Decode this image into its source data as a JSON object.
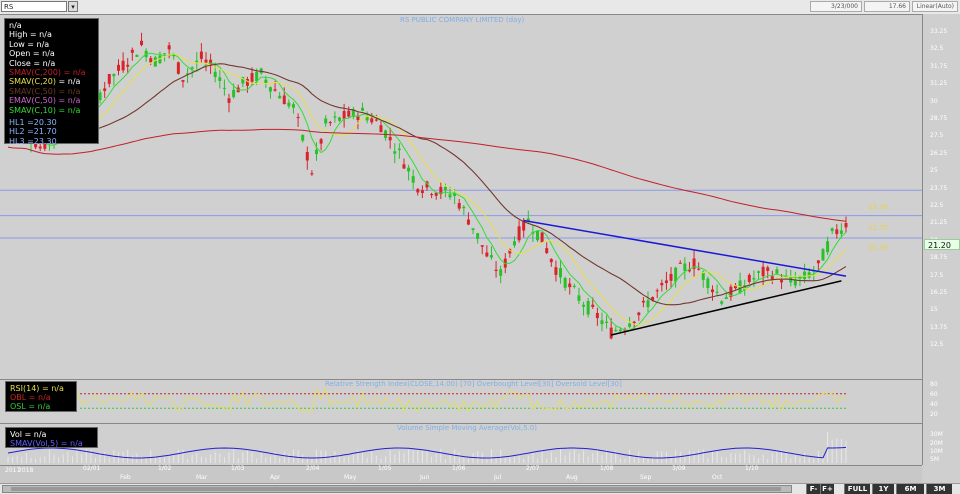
{
  "toolbar": {
    "symbol": "RS",
    "dropdown": "▾",
    "date": "3/23/000",
    "price": "17.66",
    "scale": "Linear(Auto)"
  },
  "chart_title": "RS PUBLIC COMPANY LIMITED (day)",
  "info": {
    "lines": [
      "n/a",
      "High  = n/a",
      "Low  = n/a",
      "Open  = n/a",
      "Close  = n/a"
    ],
    "mas": [
      {
        "label": "SMAV(C,200)",
        "value": "= n/a",
        "color": "#c0202a"
      },
      {
        "label": "SMAV(C,20)",
        "value": "= n/a",
        "color": "#e6e04a"
      },
      {
        "label": "SMAV(C,50)",
        "value": "= n/a",
        "color": "#6b3a22"
      },
      {
        "label": "EMAV(C,50)",
        "value": "= n/a",
        "color": "#cc66cc"
      },
      {
        "label": "SMAV(C,10)",
        "value": "= n/a",
        "color": "#33dd33"
      }
    ],
    "hls": [
      "HL1 =20.30",
      "HL2 =21.70",
      "HL3 =23.30"
    ]
  },
  "hlines": [
    {
      "label": "23.30"
    },
    {
      "label": "21.70"
    },
    {
      "label": "20.30"
    }
  ],
  "last_price": "21.20",
  "price_ticks": [
    "33.25",
    "32.5",
    "31.75",
    "31.25",
    "30",
    "28.75",
    "27.5",
    "26.25",
    "25",
    "23.75",
    "22.5",
    "21.25",
    "20",
    "18.75",
    "17.5",
    "16.25",
    "15",
    "13.75",
    "12.5"
  ],
  "rsi": {
    "title": "Relative Strength Index(CLOSE,14.00) [70] Overbought Level[30] Oversold Level[30]",
    "labels": [
      {
        "text": "RSI(14)  = n/a",
        "color": "#e6e04a"
      },
      {
        "text": "OBL  = n/a",
        "color": "#cc2222"
      },
      {
        "text": "OSL  = n/a",
        "color": "#33cc33"
      }
    ],
    "ticks": [
      "80",
      "60",
      "40",
      "20"
    ]
  },
  "vol": {
    "title": "Volume Simple Moving Average(Vol,5.0)",
    "labels": [
      {
        "text": "Vol  = n/a",
        "color": "#ffffff"
      },
      {
        "text": "SMAV(Vol,5)  = n/a",
        "color": "#6060ff"
      }
    ],
    "ticks": [
      "30M",
      "20M",
      "10M",
      "5M"
    ]
  },
  "xaxis": {
    "years": [
      "2017",
      "2018"
    ],
    "months": [
      "",
      "Feb",
      "Mar",
      "Apr",
      "May",
      "Jun",
      "Jul",
      "Aug",
      "Sep",
      "Oct"
    ],
    "dates": [
      "02/01",
      "1/02",
      "1/03",
      "2/04",
      "1/05",
      "1/06",
      "2/07",
      "1/08",
      "3/09",
      "1/10"
    ]
  },
  "nav": {
    "prev": "F-",
    "next": "F+",
    "full": "FULL",
    "y1": "1Y",
    "m6": "6M",
    "m3": "3M"
  },
  "chart_data": {
    "type": "candlestick",
    "title": "RS PUBLIC COMPANY LIMITED (day)",
    "xlabel": "",
    "ylabel": "",
    "ylim": [
      12.5,
      33.25
    ],
    "indicators": [
      "SMAV(C,200)",
      "SMAV(C,20)",
      "SMAV(C,50)",
      "EMAV(C,50)",
      "SMAV(C,10)"
    ],
    "horizontal_lines": [
      23.3,
      21.7,
      20.3
    ],
    "close_series": [
      {
        "t": 0,
        "close": 27.5
      },
      {
        "t": 8,
        "close": 27.0
      },
      {
        "t": 14,
        "close": 26.0
      },
      {
        "t": 20,
        "close": 26.6
      },
      {
        "t": 28,
        "close": 27.2
      },
      {
        "t": 36,
        "close": 28.6
      },
      {
        "t": 44,
        "close": 30.2
      },
      {
        "t": 52,
        "close": 31.5
      },
      {
        "t": 58,
        "close": 32.4
      },
      {
        "t": 64,
        "close": 31.4
      },
      {
        "t": 70,
        "close": 32.2
      },
      {
        "t": 76,
        "close": 30.4
      },
      {
        "t": 84,
        "close": 31.6
      },
      {
        "t": 90,
        "close": 30.8
      },
      {
        "t": 96,
        "close": 29.2
      },
      {
        "t": 102,
        "close": 30.0
      },
      {
        "t": 110,
        "close": 30.6
      },
      {
        "t": 116,
        "close": 29.6
      },
      {
        "t": 124,
        "close": 28.5
      },
      {
        "t": 132,
        "close": 24.5
      },
      {
        "t": 138,
        "close": 27.4
      },
      {
        "t": 146,
        "close": 27.9
      },
      {
        "t": 154,
        "close": 28.2
      },
      {
        "t": 162,
        "close": 27.4
      },
      {
        "t": 170,
        "close": 25.6
      },
      {
        "t": 178,
        "close": 23.6
      },
      {
        "t": 186,
        "close": 23.3
      },
      {
        "t": 194,
        "close": 23.0
      },
      {
        "t": 202,
        "close": 21.0
      },
      {
        "t": 208,
        "close": 19.2
      },
      {
        "t": 214,
        "close": 18.0
      },
      {
        "t": 220,
        "close": 20.2
      },
      {
        "t": 226,
        "close": 21.4
      },
      {
        "t": 232,
        "close": 20.2
      },
      {
        "t": 238,
        "close": 18.4
      },
      {
        "t": 244,
        "close": 17.2
      },
      {
        "t": 250,
        "close": 16.2
      },
      {
        "t": 256,
        "close": 15.4
      },
      {
        "t": 262,
        "close": 14.4
      },
      {
        "t": 268,
        "close": 14.8
      },
      {
        "t": 274,
        "close": 15.6
      },
      {
        "t": 280,
        "close": 16.6
      },
      {
        "t": 286,
        "close": 17.4
      },
      {
        "t": 292,
        "close": 18.3
      },
      {
        "t": 298,
        "close": 18.7
      },
      {
        "t": 304,
        "close": 17.6
      },
      {
        "t": 310,
        "close": 16.5
      },
      {
        "t": 316,
        "close": 17.0
      },
      {
        "t": 322,
        "close": 17.6
      },
      {
        "t": 328,
        "close": 18.1
      },
      {
        "t": 334,
        "close": 18.0
      },
      {
        "t": 340,
        "close": 17.5
      },
      {
        "t": 346,
        "close": 17.8
      },
      {
        "t": 352,
        "close": 18.5
      },
      {
        "t": 358,
        "close": 20.5
      },
      {
        "t": 364,
        "close": 21.2
      }
    ]
  }
}
